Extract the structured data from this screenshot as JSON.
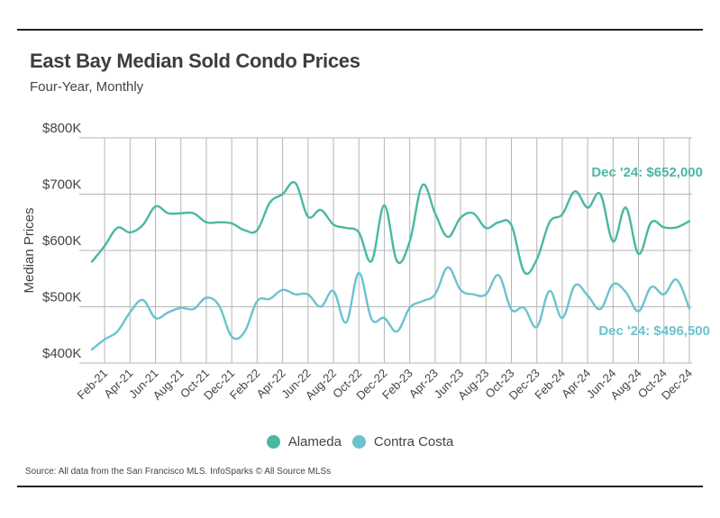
{
  "title": "East Bay Median Sold Condo Prices",
  "subtitle": "Four-Year, Monthly",
  "source": "Source:  All data from the San Francisco MLS. InfoSparks © All Source MLSs",
  "chart_data": {
    "type": "line",
    "title": "East Bay Median Sold Condo Prices",
    "subtitle": "Four-Year, Monthly",
    "xlabel": "",
    "ylabel": "Median Prices",
    "ylim": [
      400000,
      800000
    ],
    "yticks": [
      400000,
      500000,
      600000,
      700000,
      800000
    ],
    "ytick_labels": [
      "$400K",
      "$500K",
      "$600K",
      "$700K",
      "$800K"
    ],
    "grid": true,
    "legend_position": "bottom-center",
    "x": [
      "Jan-21",
      "Feb-21",
      "Mar-21",
      "Apr-21",
      "May-21",
      "Jun-21",
      "Jul-21",
      "Aug-21",
      "Sep-21",
      "Oct-21",
      "Nov-21",
      "Dec-21",
      "Jan-22",
      "Feb-22",
      "Mar-22",
      "Apr-22",
      "May-22",
      "Jun-22",
      "Jul-22",
      "Aug-22",
      "Sep-22",
      "Oct-22",
      "Nov-22",
      "Dec-22",
      "Jan-23",
      "Feb-23",
      "Mar-23",
      "Apr-23",
      "May-23",
      "Jun-23",
      "Jul-23",
      "Aug-23",
      "Sep-23",
      "Oct-23",
      "Nov-23",
      "Dec-23",
      "Jan-24",
      "Feb-24",
      "Mar-24",
      "Apr-24",
      "May-24",
      "Jun-24",
      "Jul-24",
      "Aug-24",
      "Sep-24",
      "Oct-24",
      "Nov-24",
      "Dec-24"
    ],
    "xtick_labels": [
      "Feb-21",
      "Apr-21",
      "Jun-21",
      "Aug-21",
      "Oct-21",
      "Dec-21",
      "Feb-22",
      "Apr-22",
      "Jun-22",
      "Aug-22",
      "Oct-22",
      "Dec-22",
      "Feb-23",
      "Apr-23",
      "Jun-23",
      "Aug-23",
      "Oct-23",
      "Dec-23",
      "Feb-24",
      "Apr-24",
      "Jun-24",
      "Aug-24",
      "Oct-24",
      "Dec-24"
    ],
    "series": [
      {
        "name": "Alameda",
        "color": "#4ab8a2",
        "values": [
          580000,
          608000,
          640000,
          632000,
          645000,
          678000,
          666000,
          666000,
          666000,
          650000,
          650000,
          648000,
          636000,
          636000,
          685000,
          700000,
          720000,
          660000,
          672000,
          646000,
          640000,
          632000,
          581000,
          680000,
          581000,
          616000,
          716000,
          666000,
          624000,
          658000,
          666000,
          640000,
          650000,
          645000,
          562000,
          584000,
          650000,
          664000,
          705000,
          676000,
          700000,
          616000,
          676000,
          594000,
          650000,
          641000,
          641000,
          652000
        ]
      },
      {
        "name": "Contra Costa",
        "color": "#6cc3cf",
        "values": [
          424000,
          442000,
          456000,
          490000,
          512000,
          480000,
          490000,
          498000,
          496000,
          516000,
          502000,
          447000,
          455000,
          510000,
          514000,
          530000,
          522000,
          522000,
          500000,
          528000,
          472000,
          560000,
          478000,
          480000,
          456000,
          498000,
          510000,
          522000,
          570000,
          530000,
          522000,
          522000,
          556000,
          495000,
          498000,
          464000,
          528000,
          480000,
          538000,
          520000,
          496000,
          540000,
          526000,
          492000,
          535000,
          522000,
          548000,
          496500
        ]
      }
    ],
    "annotations": [
      {
        "series": "Alameda",
        "text": "Dec '24: $652,000"
      },
      {
        "series": "Contra Costa",
        "text": "Dec '24: $496,500"
      }
    ]
  }
}
